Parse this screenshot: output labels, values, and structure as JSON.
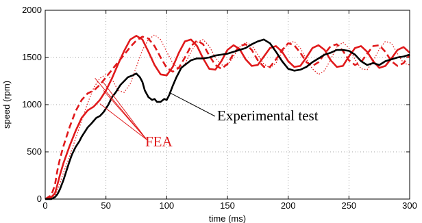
{
  "chart_data": {
    "type": "line",
    "title": "",
    "xlabel": "time (ms)",
    "ylabel": "speed (rpm)",
    "xlim": [
      0,
      300
    ],
    "ylim": [
      0,
      2000
    ],
    "xticks": [
      0,
      50,
      100,
      150,
      200,
      250,
      300
    ],
    "yticks": [
      0,
      500,
      1000,
      1500,
      2000
    ],
    "grid": true,
    "colors": {
      "experimental": "#000000",
      "fea": "#e0191b"
    },
    "series": [
      {
        "style": "solid-black",
        "x": [
          0,
          5,
          8,
          10,
          12,
          15,
          18,
          20,
          22,
          25,
          28,
          30,
          32,
          35,
          38,
          40,
          42,
          45,
          48,
          50,
          52,
          55,
          58,
          60,
          62,
          65,
          68,
          70,
          72,
          75,
          78,
          80,
          82,
          85,
          88,
          90,
          92,
          95,
          98,
          100,
          102,
          105,
          108,
          110,
          112,
          115,
          118,
          120,
          125,
          130,
          135,
          140,
          145,
          150,
          155,
          160,
          165,
          170,
          175,
          180,
          185,
          190,
          195,
          200,
          205,
          210,
          215,
          220,
          225,
          230,
          235,
          240,
          245,
          250,
          255,
          260,
          265,
          270,
          275,
          280,
          285,
          290,
          295,
          300
        ],
        "y": [
          0,
          0,
          20,
          50,
          100,
          200,
          320,
          400,
          470,
          550,
          610,
          660,
          700,
          760,
          800,
          830,
          860,
          880,
          920,
          960,
          1000,
          1080,
          1130,
          1170,
          1210,
          1250,
          1290,
          1300,
          1310,
          1330,
          1290,
          1240,
          1150,
          1080,
          1050,
          1060,
          1030,
          1030,
          1060,
          1050,
          1100,
          1200,
          1290,
          1340,
          1390,
          1420,
          1450,
          1470,
          1490,
          1490,
          1500,
          1520,
          1530,
          1540,
          1560,
          1580,
          1600,
          1640,
          1670,
          1690,
          1650,
          1560,
          1460,
          1380,
          1360,
          1370,
          1400,
          1450,
          1490,
          1530,
          1550,
          1580,
          1580,
          1570,
          1530,
          1460,
          1420,
          1440,
          1420,
          1460,
          1480,
          1500,
          1510,
          1530
        ]
      },
      {
        "style": "solid-red",
        "x": [
          0,
          5,
          8,
          10,
          12,
          15,
          20,
          25,
          30,
          35,
          40,
          45,
          50,
          55,
          60,
          65,
          70,
          75,
          80,
          85,
          90,
          95,
          100,
          105,
          110,
          115,
          120,
          125,
          130,
          135,
          140,
          145,
          150,
          155,
          160,
          165,
          170,
          175,
          180,
          185,
          190,
          195,
          200,
          205,
          210,
          215,
          220,
          225,
          230,
          235,
          240,
          245,
          250,
          255,
          260,
          265,
          270,
          275,
          280,
          285,
          290,
          295,
          300
        ],
        "y": [
          0,
          20,
          60,
          150,
          250,
          380,
          560,
          720,
          860,
          940,
          980,
          1050,
          1150,
          1280,
          1430,
          1570,
          1690,
          1730,
          1690,
          1560,
          1420,
          1320,
          1310,
          1400,
          1550,
          1670,
          1690,
          1620,
          1490,
          1380,
          1370,
          1460,
          1580,
          1630,
          1590,
          1480,
          1410,
          1420,
          1510,
          1600,
          1620,
          1560,
          1460,
          1400,
          1410,
          1500,
          1600,
          1630,
          1580,
          1470,
          1400,
          1410,
          1510,
          1600,
          1620,
          1560,
          1460,
          1390,
          1410,
          1490,
          1580,
          1610,
          1550
        ]
      },
      {
        "style": "dashed-red",
        "x": [
          0,
          5,
          8,
          10,
          12,
          15,
          20,
          25,
          30,
          35,
          40,
          45,
          50,
          55,
          60,
          65,
          70,
          75,
          80,
          85,
          90,
          95,
          100,
          105,
          110,
          115,
          120,
          125,
          130,
          135,
          140,
          145,
          150,
          155,
          160,
          165,
          170,
          175,
          180,
          185,
          190,
          195,
          200,
          205,
          210,
          215,
          220,
          225,
          230,
          235,
          240,
          245,
          250,
          255,
          260,
          265,
          270,
          275,
          280,
          285,
          290,
          295,
          300
        ],
        "y": [
          0,
          40,
          150,
          300,
          420,
          560,
          760,
          930,
          1050,
          1120,
          1150,
          1210,
          1290,
          1370,
          1450,
          1530,
          1610,
          1680,
          1720,
          1700,
          1620,
          1500,
          1390,
          1350,
          1390,
          1500,
          1620,
          1680,
          1640,
          1520,
          1420,
          1380,
          1430,
          1540,
          1620,
          1640,
          1580,
          1470,
          1400,
          1400,
          1480,
          1580,
          1650,
          1630,
          1550,
          1450,
          1410,
          1450,
          1540,
          1620,
          1640,
          1570,
          1470,
          1420,
          1450,
          1540,
          1620,
          1630,
          1560,
          1460,
          1410,
          1440,
          1530
        ]
      },
      {
        "style": "dotted-red",
        "x": [
          0,
          5,
          8,
          10,
          12,
          15,
          20,
          25,
          30,
          35,
          40,
          45,
          50,
          55,
          60,
          65,
          70,
          75,
          80,
          85,
          90,
          95,
          100,
          105,
          110,
          115,
          120,
          125,
          130,
          135,
          140,
          145,
          150,
          155,
          160,
          165,
          170,
          175,
          180,
          185,
          190,
          195,
          200,
          205,
          210,
          215,
          220,
          225,
          230,
          235,
          240,
          245,
          250,
          255,
          260,
          265,
          270,
          275,
          280,
          285,
          290,
          295,
          300
        ],
        "y": [
          0,
          15,
          40,
          90,
          160,
          280,
          450,
          640,
          830,
          1020,
          1180,
          1280,
          1320,
          1270,
          1150,
          1130,
          1220,
          1400,
          1580,
          1690,
          1740,
          1690,
          1560,
          1440,
          1380,
          1430,
          1560,
          1660,
          1690,
          1620,
          1500,
          1420,
          1420,
          1510,
          1610,
          1660,
          1630,
          1530,
          1430,
          1390,
          1440,
          1560,
          1650,
          1670,
          1600,
          1480,
          1380,
          1320,
          1360,
          1480,
          1610,
          1660,
          1600,
          1480,
          1380,
          1370,
          1460,
          1590,
          1670,
          1650,
          1540,
          1440,
          1420
        ]
      }
    ],
    "annotations": [
      {
        "text": "Experimental test",
        "color": "#000000",
        "points_to": [
          102,
          1130
        ]
      },
      {
        "text": "FEA",
        "color": "#e0191b",
        "points_to": [
          [
            45,
            1010
          ],
          [
            48,
            1150
          ],
          [
            47,
            1250
          ],
          [
            41,
            1280
          ]
        ]
      }
    ]
  }
}
